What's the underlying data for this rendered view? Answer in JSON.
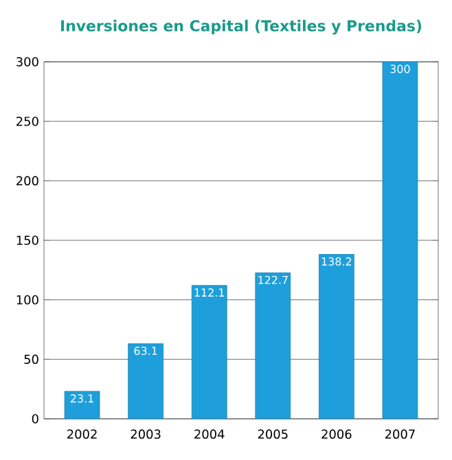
{
  "chart_data": {
    "type": "bar",
    "title": "Inversiones en Capital (Textiles y Prendas)",
    "categories": [
      "2002",
      "2003",
      "2004",
      "2005",
      "2006",
      "2007"
    ],
    "values": [
      23.1,
      63.1,
      112.1,
      122.7,
      138.2,
      300
    ],
    "color": "#1e9fdb",
    "ylim": [
      0,
      300
    ],
    "yticks": [
      0,
      50,
      100,
      150,
      200,
      250,
      300
    ],
    "grid": "y",
    "data_labels": true
  }
}
